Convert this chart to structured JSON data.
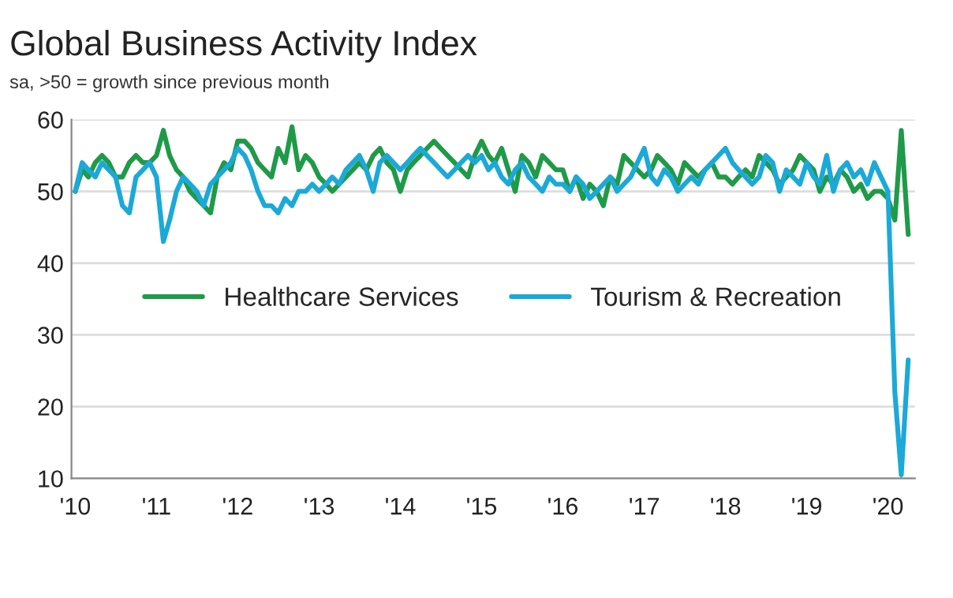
{
  "chart_data": {
    "type": "line",
    "title": "Global Business Activity Index",
    "subtitle": "sa, >50 = growth since previous month",
    "x": [
      "2010-01",
      "2010-02",
      "2010-03",
      "2010-04",
      "2010-05",
      "2010-06",
      "2010-07",
      "2010-08",
      "2010-09",
      "2010-10",
      "2010-11",
      "2010-12",
      "2011-01",
      "2011-02",
      "2011-03",
      "2011-04",
      "2011-05",
      "2011-06",
      "2011-07",
      "2011-08",
      "2011-09",
      "2011-10",
      "2011-11",
      "2011-12",
      "2012-01",
      "2012-02",
      "2012-03",
      "2012-04",
      "2012-05",
      "2012-06",
      "2012-07",
      "2012-08",
      "2012-09",
      "2012-10",
      "2012-11",
      "2012-12",
      "2013-01",
      "2013-02",
      "2013-03",
      "2013-04",
      "2013-05",
      "2013-06",
      "2013-07",
      "2013-08",
      "2013-09",
      "2013-10",
      "2013-11",
      "2013-12",
      "2014-01",
      "2014-02",
      "2014-03",
      "2014-04",
      "2014-05",
      "2014-06",
      "2014-07",
      "2014-08",
      "2014-09",
      "2014-10",
      "2014-11",
      "2014-12",
      "2015-01",
      "2015-02",
      "2015-03",
      "2015-04",
      "2015-05",
      "2015-06",
      "2015-07",
      "2015-08",
      "2015-09",
      "2015-10",
      "2015-11",
      "2015-12",
      "2016-01",
      "2016-02",
      "2016-03",
      "2016-04",
      "2016-05",
      "2016-06",
      "2016-07",
      "2016-08",
      "2016-09",
      "2016-10",
      "2016-11",
      "2016-12",
      "2017-01",
      "2017-02",
      "2017-03",
      "2017-04",
      "2017-05",
      "2017-06",
      "2017-07",
      "2017-08",
      "2017-09",
      "2017-10",
      "2017-11",
      "2017-12",
      "2018-01",
      "2018-02",
      "2018-03",
      "2018-04",
      "2018-05",
      "2018-06",
      "2018-07",
      "2018-08",
      "2018-09",
      "2018-10",
      "2018-11",
      "2018-12",
      "2019-01",
      "2019-02",
      "2019-03",
      "2019-04",
      "2019-05",
      "2019-06",
      "2019-07",
      "2019-08",
      "2019-09",
      "2019-10",
      "2019-11",
      "2019-12",
      "2020-01",
      "2020-02",
      "2020-03",
      "2020-04"
    ],
    "series": [
      {
        "name": "Healthcare Services",
        "color": "#1f9a48",
        "values": [
          50,
          53,
          52,
          54,
          55,
          54,
          52,
          52,
          54,
          55,
          54,
          54,
          55,
          58.5,
          55,
          53,
          52,
          50,
          49,
          48,
          47,
          52,
          54,
          53,
          57,
          57,
          56,
          54,
          53,
          52,
          56,
          54,
          59,
          53,
          55,
          54,
          52,
          51,
          50,
          51,
          52,
          53,
          54,
          53,
          55,
          56,
          54,
          53,
          50,
          53,
          54,
          55,
          56,
          57,
          56,
          55,
          54,
          53,
          52,
          55,
          57,
          55,
          54,
          56,
          53,
          50,
          55,
          54,
          52,
          55,
          54,
          53,
          53,
          50,
          52,
          49,
          51,
          50,
          48,
          52,
          51,
          55,
          54,
          53,
          52,
          53,
          55,
          54,
          53,
          51,
          54,
          53,
          52,
          53,
          54,
          52,
          52,
          51,
          52,
          53,
          52,
          55,
          54,
          53,
          51,
          52,
          53,
          55,
          54,
          53,
          50,
          52,
          51,
          53,
          52,
          50,
          51,
          49,
          50,
          50,
          49,
          46,
          58.5,
          44
        ]
      },
      {
        "name": "Tourism & Recreation",
        "color": "#1ba9d8",
        "values": [
          50,
          54,
          53,
          52,
          54,
          53,
          52,
          48,
          47,
          52,
          53,
          54,
          52,
          43,
          46,
          50,
          52,
          51,
          50,
          48,
          51,
          52,
          53,
          54,
          56,
          55,
          53,
          50,
          48,
          48,
          47,
          49,
          48,
          50,
          50,
          51,
          50,
          51,
          52,
          51,
          53,
          54,
          55,
          53,
          50,
          54,
          55,
          54,
          53,
          54,
          55,
          56,
          55,
          54,
          53,
          52,
          53,
          54,
          55,
          54,
          55,
          53,
          54,
          52,
          51,
          53,
          54,
          52,
          51,
          50,
          52,
          51,
          51,
          50,
          52,
          51,
          49,
          50,
          51,
          52,
          50,
          51,
          52,
          54,
          56,
          52,
          51,
          53,
          52,
          50,
          51,
          52,
          51,
          53,
          54,
          55,
          56,
          54,
          53,
          52,
          51,
          52,
          55,
          54,
          50,
          53,
          52,
          51,
          54,
          52,
          51,
          55,
          50,
          53,
          54,
          52,
          53,
          51,
          54,
          52,
          50,
          22,
          10.5,
          26.5
        ]
      }
    ],
    "xlim": [
      "2009-12-15",
      "2020-05-01"
    ],
    "xticks": [
      {
        "value": "2010-01",
        "label": "'10"
      },
      {
        "value": "2011-01",
        "label": "'11"
      },
      {
        "value": "2012-01",
        "label": "'12"
      },
      {
        "value": "2013-01",
        "label": "'13"
      },
      {
        "value": "2014-01",
        "label": "'14"
      },
      {
        "value": "2015-01",
        "label": "'15"
      },
      {
        "value": "2016-01",
        "label": "'16"
      },
      {
        "value": "2017-01",
        "label": "'17"
      },
      {
        "value": "2018-01",
        "label": "'18"
      },
      {
        "value": "2019-01",
        "label": "'19"
      },
      {
        "value": "2020-01",
        "label": "'20"
      }
    ],
    "ylim": [
      10,
      60
    ],
    "yticks": [
      10,
      20,
      30,
      40,
      50,
      60
    ],
    "grid": "y",
    "legend": "center"
  }
}
